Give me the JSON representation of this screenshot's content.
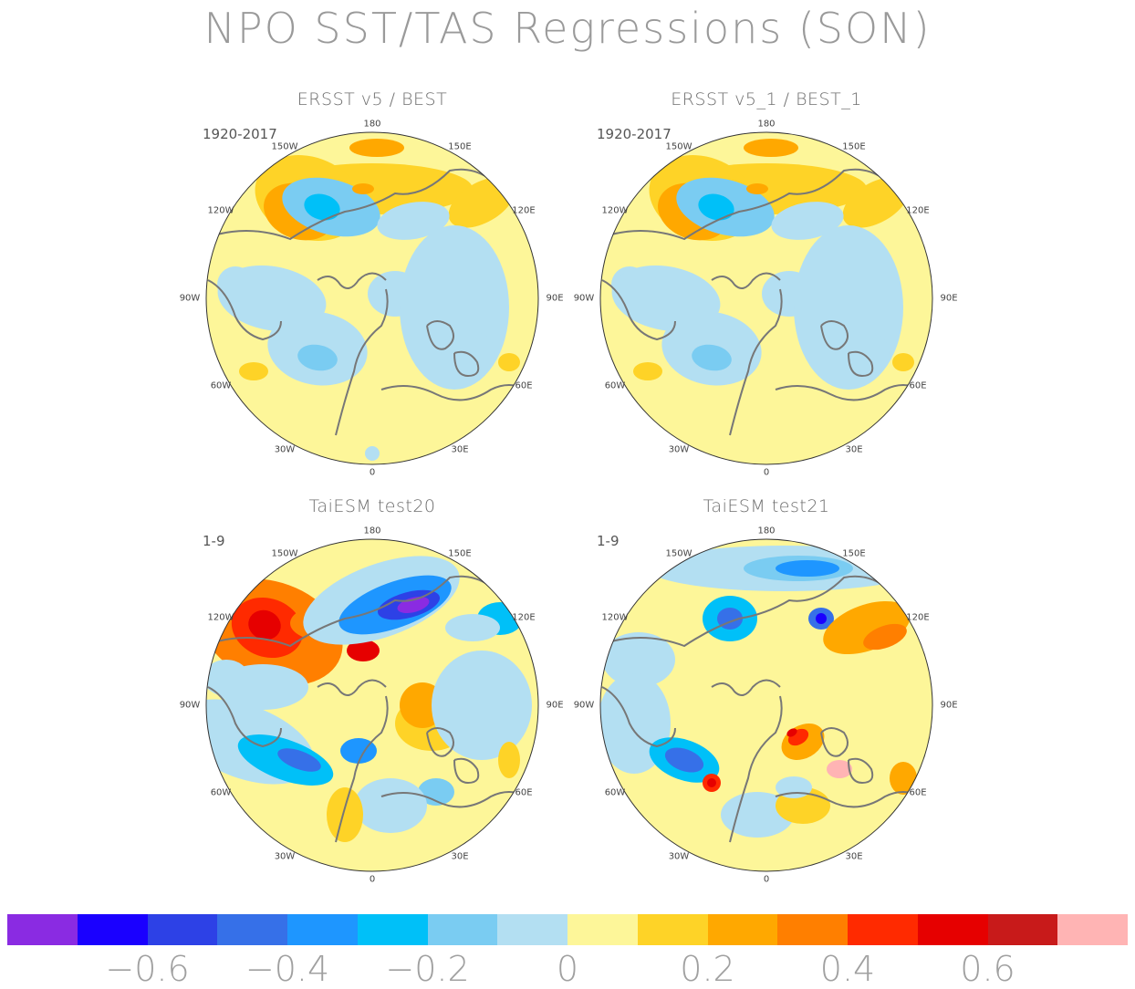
{
  "title": "NPO SST/TAS Regressions (SON)",
  "panels": [
    {
      "title": "ERSST v5 / BEST",
      "period": "1920-2017"
    },
    {
      "title": "ERSST v5_1 / BEST_1",
      "period": "1920-2017"
    },
    {
      "title": "TaiESM test20",
      "period": "1-9"
    },
    {
      "title": "TaiESM test21",
      "period": "1-9"
    }
  ],
  "longitude_labels": [
    "180",
    "150E",
    "120E",
    "90E",
    "60E",
    "30E",
    "0",
    "30W",
    "60W",
    "90W",
    "120W",
    "150W"
  ],
  "colorbar": {
    "colors": [
      "#8a2be2",
      "#1a00ff",
      "#2d41e6",
      "#3670e8",
      "#1e96ff",
      "#00c0f8",
      "#7accf2",
      "#b3dff2",
      "#fdf699",
      "#fed327",
      "#ffa800",
      "#ff7f00",
      "#ff2a00",
      "#e60000",
      "#c81a1a",
      "#ffb4b4"
    ],
    "tick_labels": [
      "−0.6",
      "−0.4",
      "−0.2",
      "0",
      "0.2",
      "0.4",
      "0.6"
    ]
  }
}
